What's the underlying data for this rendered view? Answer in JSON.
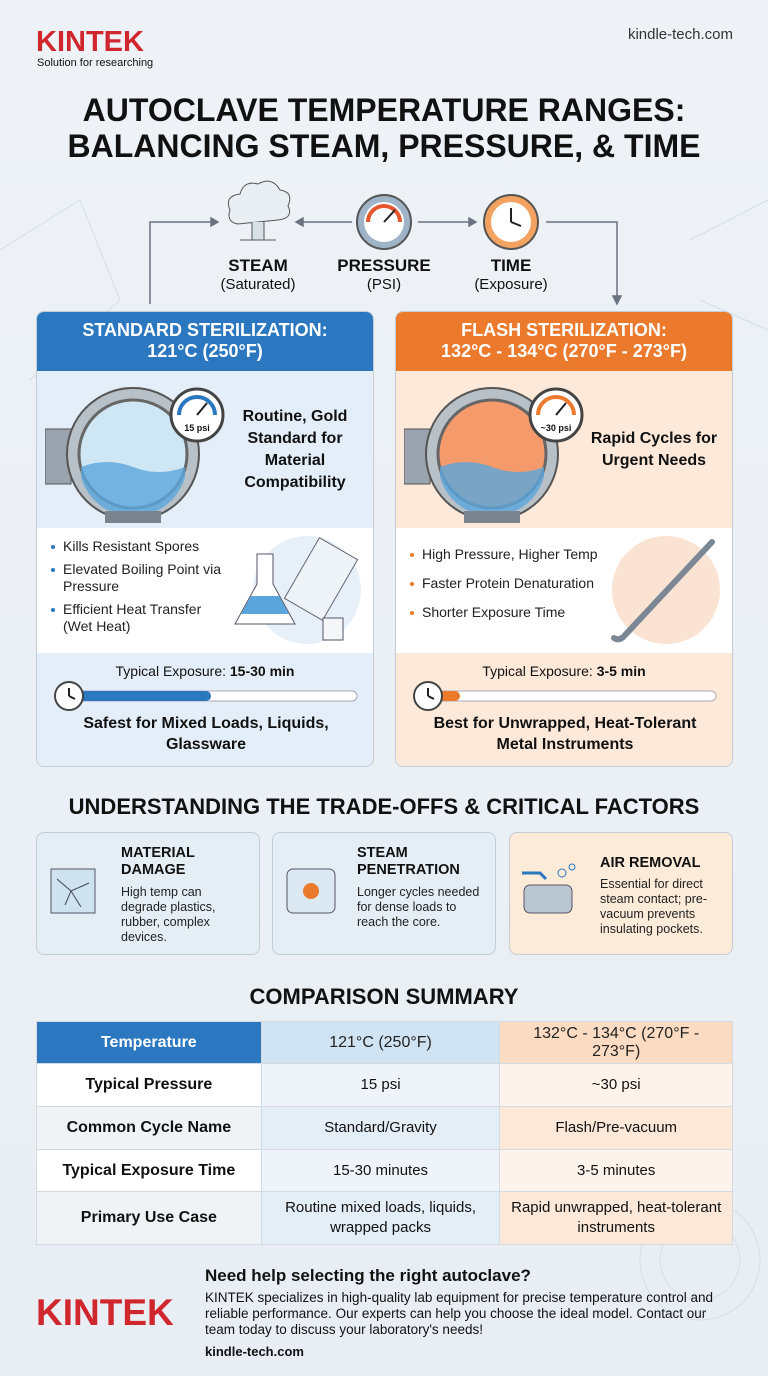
{
  "header": {
    "brand": "KINTEK",
    "tagline": "Solution for researching",
    "url": "kindle-tech.com"
  },
  "title_lines": [
    "AUTOCLAVE TEMPERATURE RANGES:",
    "BALANCING STEAM, PRESSURE, & TIME"
  ],
  "cycle": [
    {
      "label": "STEAM",
      "sub": "(Saturated)"
    },
    {
      "label": "PRESSURE",
      "sub": "(PSI)"
    },
    {
      "label": "TIME",
      "sub": "(Exposure)"
    }
  ],
  "panels": [
    {
      "heading_lines": [
        "STANDARD STERILIZATION:",
        "121°C (250°F)"
      ],
      "gauge": "15 psi",
      "tagline": "Routine, Gold Standard for Material Compatibility",
      "bullets": [
        "Kills Resistant Spores",
        "Elevated Boiling Point via Pressure",
        "Efficient Heat Transfer (Wet Heat)"
      ],
      "exposure_label": "Typical Exposure:",
      "exposure_value": "15-30 min",
      "footer": "Safest for Mixed Loads, Liquids, Glassware"
    },
    {
      "heading_lines": [
        "FLASH STERILIZATION:",
        "132°C - 134°C (270°F - 273°F)"
      ],
      "gauge": "~30 psi",
      "tagline": "Rapid Cycles for Urgent Needs",
      "bullets": [
        "High Pressure, Higher Temp",
        "Faster Protein Denaturation",
        "Shorter Exposure Time"
      ],
      "exposure_label": "Typical Exposure:",
      "exposure_value": "3-5 min",
      "footer": "Best for Unwrapped, Heat-Tolerant Metal Instruments"
    }
  ],
  "tradeoffs": {
    "title": "UNDERSTANDING THE TRADE-OFFS & CRITICAL FACTORS",
    "cards": [
      {
        "title": "MATERIAL DAMAGE",
        "text": "High temp can degrade plastics, rubber, complex devices."
      },
      {
        "title": "STEAM PENETRATION",
        "text": "Longer cycles needed for dense loads to reach the core."
      },
      {
        "title": "AIR REMOVAL",
        "text": "Essential for direct steam contact; pre-vacuum prevents insulating pockets."
      }
    ]
  },
  "comparison": {
    "title": "COMPARISON SUMMARY",
    "header": [
      "Temperature",
      "121°C (250°F)",
      "132°C - 134°C (270°F - 273°F)"
    ],
    "rows": [
      [
        "Typical Pressure",
        "15 psi",
        "~30 psi"
      ],
      [
        "Common Cycle Name",
        "Standard/Gravity",
        "Flash/Pre-vacuum"
      ],
      [
        "Typical Exposure Time",
        "15-30 minutes",
        "3-5 minutes"
      ],
      [
        "Primary Use Case",
        "Routine mixed loads, liquids, wrapped packs",
        "Rapid unwrapped, heat-tolerant instruments"
      ]
    ]
  },
  "footer": {
    "heading": "Need help selecting the right autoclave?",
    "body": "KINTEK specializes in high-quality lab equipment for precise temperature control and reliable performance. Our experts can help you choose the ideal model. Contact our team today to discuss your laboratory's needs!",
    "brand": "KINTEK",
    "url": "kindle-tech.com"
  }
}
